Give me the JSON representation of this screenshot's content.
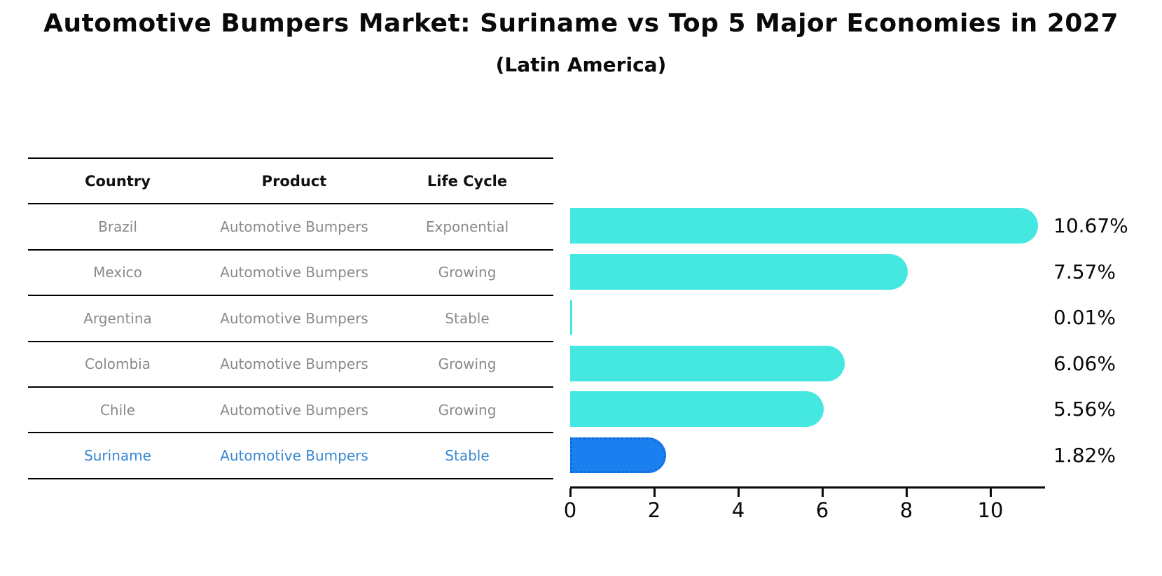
{
  "title": "Automotive Bumpers Market: Suriname vs Top 5 Major Economies in 2027",
  "subtitle": "(Latin America)",
  "table": {
    "headers": [
      "Country",
      "Product",
      "Life Cycle"
    ],
    "highlight_index": 5,
    "rows": [
      {
        "country": "Brazil",
        "product": "Automotive Bumpers",
        "life_cycle": "Exponential"
      },
      {
        "country": "Mexico",
        "product": "Automotive Bumpers",
        "life_cycle": "Growing"
      },
      {
        "country": "Argentina",
        "product": "Automotive Bumpers",
        "life_cycle": "Stable"
      },
      {
        "country": "Colombia",
        "product": "Automotive Bumpers",
        "life_cycle": "Growing"
      },
      {
        "country": "Chile",
        "product": "Automotive Bumpers",
        "life_cycle": "Growing"
      },
      {
        "country": "Suriname",
        "product": "Automotive Bumpers",
        "life_cycle": "Stable"
      }
    ]
  },
  "chart_data": {
    "type": "bar",
    "orientation": "horizontal",
    "title": "Automotive Bumpers Market: Suriname vs Top 5 Major Economies in 2027",
    "subtitle": "(Latin America)",
    "categories": [
      "Brazil",
      "Mexico",
      "Argentina",
      "Colombia",
      "Chile",
      "Suriname"
    ],
    "values": [
      10.67,
      7.57,
      0.01,
      6.06,
      5.56,
      1.82
    ],
    "labels": [
      "10.67%",
      "7.57%",
      "0.01%",
      "6.06%",
      "5.56%",
      "1.82%"
    ],
    "xticks": [
      0,
      2,
      4,
      6,
      8,
      10
    ],
    "xlim": [
      0,
      11.3
    ],
    "grid": false,
    "legend": "none",
    "highlight_index": 5
  },
  "colors": {
    "bar": "#45e8e1",
    "highlight": "#1a80f0",
    "highlight_border": "#1668d8",
    "text_gray": "#8a8a8a",
    "text_blue": "#3787d1",
    "axis": "#0a0a0a"
  }
}
